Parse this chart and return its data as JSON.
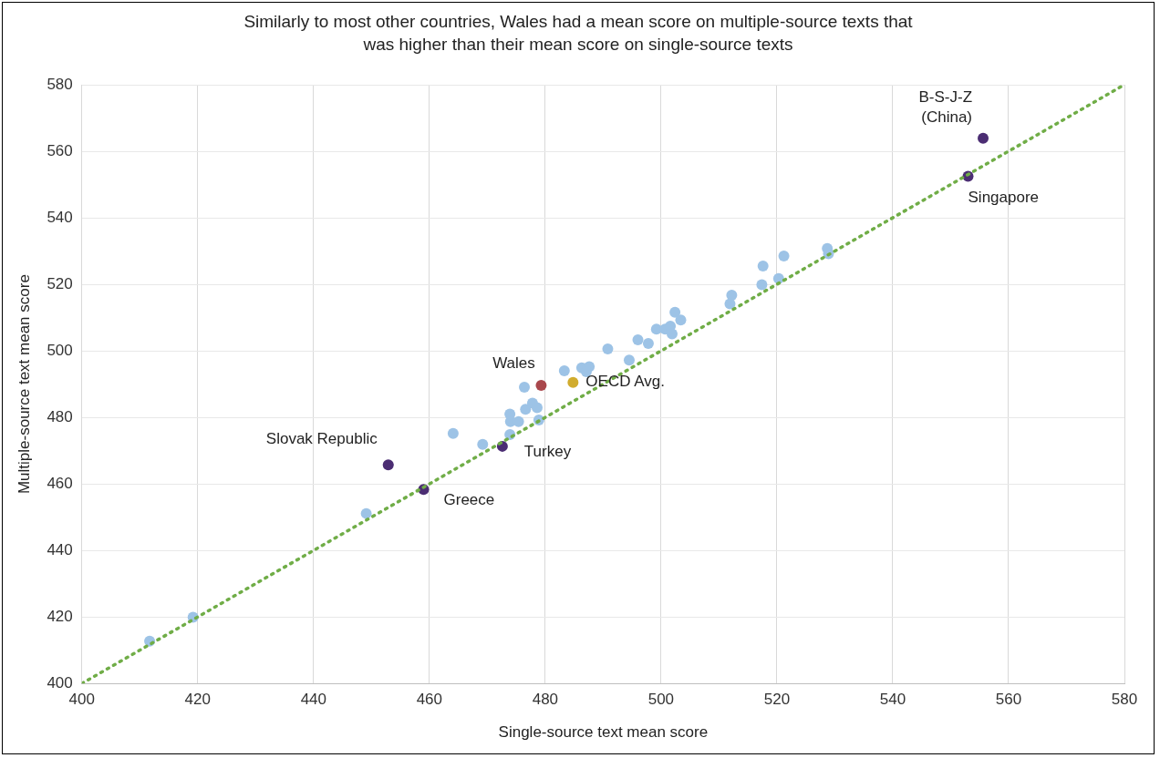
{
  "chart_data": {
    "type": "scatter",
    "title": "Similarly to most other countries, Wales had a mean score on multiple-source texts that was higher than their mean score on single-source texts",
    "xlabel": "Single-source text mean score",
    "ylabel": "Multiple-source text mean score",
    "xlim": [
      400,
      580
    ],
    "xticks": [
      400,
      420,
      440,
      460,
      480,
      500,
      520,
      540,
      560,
      580
    ],
    "ylim": [
      400,
      580
    ],
    "yticks": [
      400,
      420,
      440,
      460,
      480,
      500,
      520,
      540,
      560,
      580
    ],
    "grid": true,
    "legend": false,
    "marker": "circle",
    "series": [
      {
        "type": "line",
        "color": "#70ad47",
        "line_style": "dotted",
        "marker": "none",
        "x": [
          400,
          580
        ],
        "values": [
          400,
          580
        ]
      },
      {
        "color": "#9dc3e6",
        "x": [
          411.7,
          419.2,
          449.1,
          464.1,
          469.2,
          473.9,
          474.0,
          473.9,
          475.4,
          476.6,
          477.8,
          478.6,
          478.9,
          476.4,
          483.3,
          486.3,
          487.6,
          487.1,
          490.8,
          494.5,
          496.0,
          497.8,
          499.2,
          500.7,
          501.6,
          501.9,
          502.4,
          503.4,
          512.2,
          511.9,
          517.6,
          517.4,
          521.2,
          520.3,
          528.7,
          528.9
        ],
        "values": [
          412.7,
          419.9,
          451.1,
          475.2,
          471.9,
          474.8,
          478.7,
          481.0,
          478.7,
          482.4,
          484.3,
          482.9,
          479.2,
          489.1,
          494.0,
          494.9,
          495.2,
          493.7,
          500.6,
          497.2,
          503.3,
          502.2,
          506.5,
          506.5,
          507.4,
          505.1,
          511.6,
          509.3,
          516.7,
          514.1,
          525.5,
          519.9,
          528.5,
          521.7,
          530.8,
          529.2
        ]
      },
      {
        "color": "#4b2d73",
        "x": [
          472.6,
          452.9,
          459.0,
          553.0,
          555.6
        ],
        "values": [
          471.3,
          465.7,
          458.3,
          552.5,
          563.9
        ]
      },
      {
        "color": "#a9474c",
        "x": [
          479.3
        ],
        "values": [
          489.6
        ]
      },
      {
        "color": "#d1ac2e",
        "x": [
          484.8
        ],
        "values": [
          490.5
        ]
      }
    ],
    "annotations": [
      {
        "text": "Wales",
        "x": 479.3,
        "y": 489.6
      },
      {
        "text": "OECD Avg.",
        "x": 484.8,
        "y": 490.5
      },
      {
        "text": "Turkey",
        "x": 472.6,
        "y": 471.3
      },
      {
        "text": "Slovak Republic",
        "x": 452.9,
        "y": 465.7
      },
      {
        "text": "Greece",
        "x": 459.0,
        "y": 458.3
      },
      {
        "text": "Singapore",
        "x": 553.0,
        "y": 552.5
      },
      {
        "text": "B-S-J-Z\n(China)",
        "x": 555.6,
        "y": 563.9
      }
    ]
  }
}
